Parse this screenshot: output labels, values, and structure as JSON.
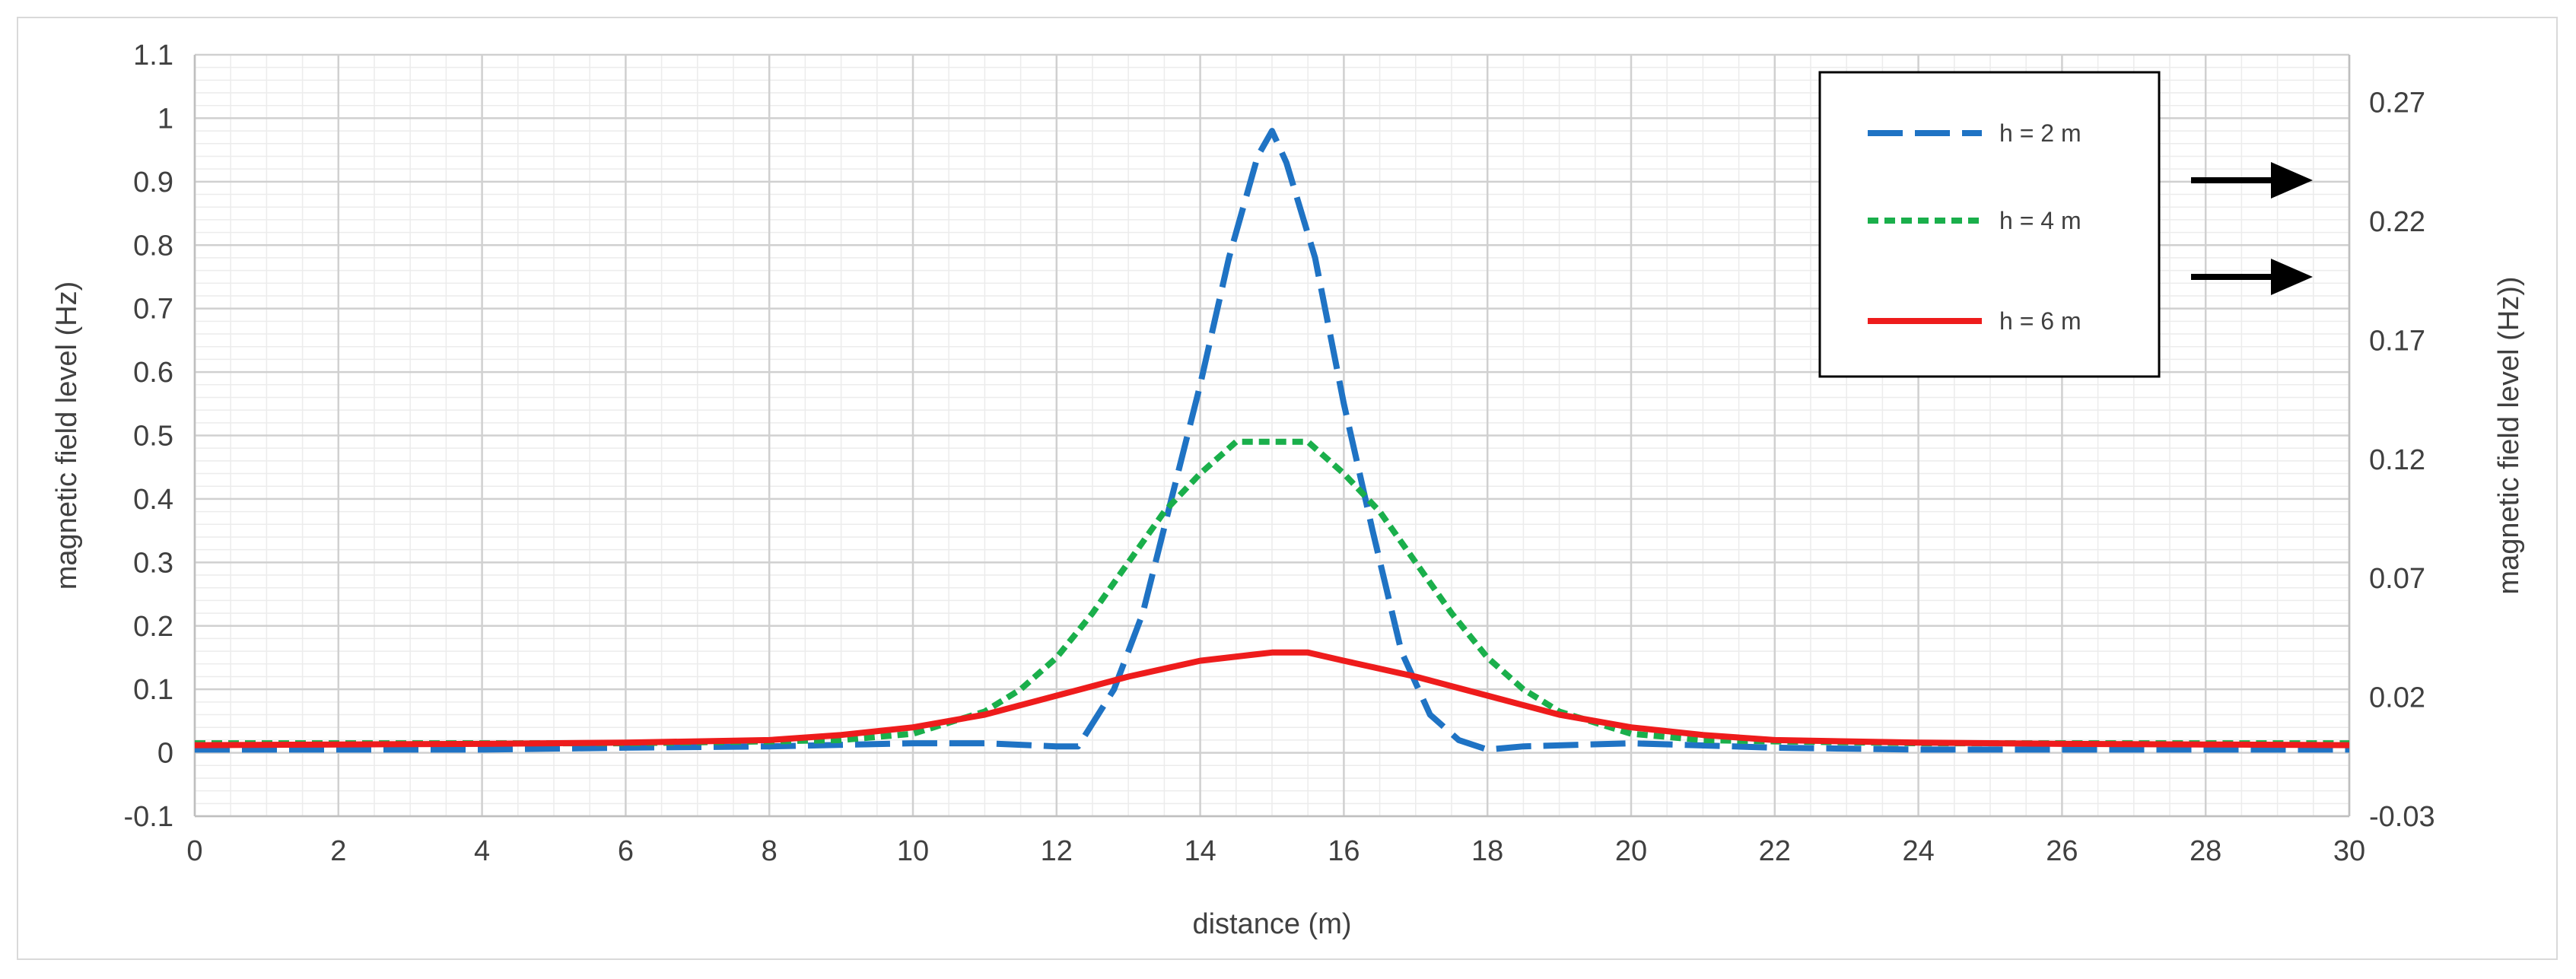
{
  "chart_data": {
    "type": "line",
    "xlabel": "distance (m)",
    "ylabel": "magnetic field level (Hz)",
    "y2label": "magnetic field level (Hz))",
    "xlim": [
      0,
      30
    ],
    "ylim": [
      -0.1,
      1.1
    ],
    "y2lim": [
      -0.03,
      0.29
    ],
    "x_ticks": [
      "0",
      "2",
      "4",
      "6",
      "8",
      "10",
      "12",
      "14",
      "16",
      "18",
      "20",
      "22",
      "24",
      "26",
      "28",
      "30"
    ],
    "y_ticks": [
      "-0.1",
      "0",
      "0.1",
      "0.2",
      "0.3",
      "0.4",
      "0.5",
      "0.6",
      "0.7",
      "0.8",
      "0.9",
      "1",
      "1.1"
    ],
    "y2_ticks": [
      "-0.03",
      "0.02",
      "0.07",
      "0.12",
      "0.17",
      "0.22",
      "0.27"
    ],
    "grid": true,
    "legend_position": "top-right",
    "series": [
      {
        "name": "h = 2 m",
        "color": "#1f73c4",
        "style": "long-dash",
        "x": [
          0,
          2,
          4,
          6,
          8,
          10,
          11,
          12,
          12.3,
          12.8,
          13.2,
          13.6,
          14,
          14.4,
          14.8,
          15,
          15.2,
          15.6,
          16,
          16.4,
          16.8,
          17.2,
          17.6,
          18,
          18.5,
          20,
          22,
          24,
          26,
          28,
          30
        ],
        "y": [
          0.005,
          0.005,
          0.005,
          0.008,
          0.01,
          0.015,
          0.015,
          0.01,
          0.01,
          0.1,
          0.22,
          0.4,
          0.58,
          0.78,
          0.94,
          0.98,
          0.93,
          0.78,
          0.55,
          0.35,
          0.16,
          0.06,
          0.02,
          0.005,
          0.01,
          0.015,
          0.008,
          0.005,
          0.005,
          0.005,
          0.005
        ]
      },
      {
        "name": "h = 4 m",
        "color": "#1aaf4b",
        "style": "short-dash",
        "x": [
          0,
          2,
          4,
          6,
          8,
          9,
          10,
          11,
          11.5,
          12,
          12.5,
          13,
          13.5,
          14,
          14.5,
          15,
          15.5,
          16,
          16.5,
          17,
          17.5,
          18,
          18.5,
          19,
          20,
          21,
          22,
          24,
          26,
          28,
          30
        ],
        "y": [
          0.015,
          0.015,
          0.015,
          0.015,
          0.018,
          0.02,
          0.03,
          0.065,
          0.1,
          0.15,
          0.22,
          0.3,
          0.38,
          0.44,
          0.49,
          0.49,
          0.49,
          0.44,
          0.38,
          0.3,
          0.22,
          0.15,
          0.1,
          0.065,
          0.03,
          0.02,
          0.018,
          0.015,
          0.015,
          0.015,
          0.015
        ]
      },
      {
        "name": "h = 6 m",
        "color": "#ee1c1c",
        "style": "solid",
        "x": [
          0,
          2,
          4,
          6,
          7,
          8,
          9,
          10,
          11,
          12,
          13,
          14,
          15,
          15.5,
          16,
          17,
          18,
          19,
          20,
          21,
          22,
          23,
          24,
          26,
          28,
          30
        ],
        "y": [
          0.012,
          0.013,
          0.014,
          0.016,
          0.018,
          0.02,
          0.028,
          0.04,
          0.06,
          0.09,
          0.12,
          0.145,
          0.158,
          0.158,
          0.145,
          0.12,
          0.09,
          0.06,
          0.04,
          0.028,
          0.02,
          0.018,
          0.016,
          0.014,
          0.013,
          0.012
        ]
      }
    ]
  }
}
